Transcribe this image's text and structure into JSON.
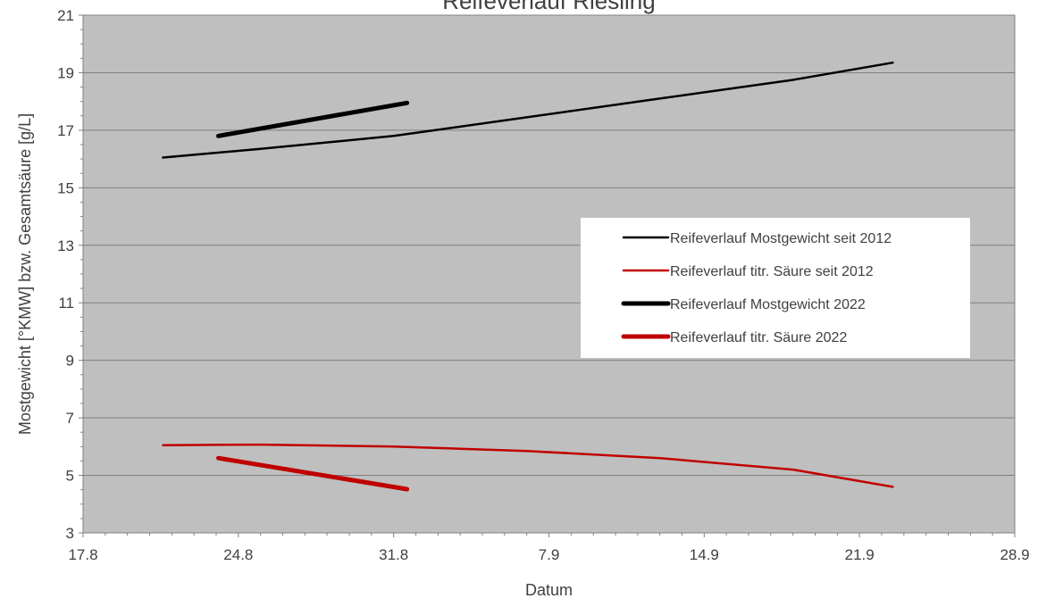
{
  "chart_data": {
    "type": "line",
    "title": "Reifeverlauf Riesling",
    "xlabel": "Datum",
    "ylabel": "Mostgewicht [°KMW] bzw. Gesamtsäure [g/L]",
    "x_ticks": [
      "17.8",
      "24.8",
      "31.8",
      "7.9",
      "14.9",
      "21.9",
      "28.9"
    ],
    "xlim": [
      0,
      42
    ],
    "ylim": [
      3,
      21
    ],
    "y_ticks": [
      3,
      5,
      7,
      9,
      11,
      13,
      15,
      17,
      19,
      21
    ],
    "grid": "horizontal",
    "legend_position": "right-center",
    "series": [
      {
        "name": "Reifeverlauf Mostgewicht seit 2012",
        "color": "#000000",
        "width": "thin",
        "points": [
          [
            3.6,
            16.05
          ],
          [
            8,
            16.35
          ],
          [
            14,
            16.8
          ],
          [
            20,
            17.45
          ],
          [
            26,
            18.1
          ],
          [
            32,
            18.75
          ],
          [
            36.5,
            19.35
          ]
        ]
      },
      {
        "name": "Reifeverlauf titr. Säure seit 2012",
        "color": "#c00000",
        "width": "thin",
        "points": [
          [
            3.6,
            6.05
          ],
          [
            8,
            6.07
          ],
          [
            14,
            6.0
          ],
          [
            20,
            5.85
          ],
          [
            26,
            5.6
          ],
          [
            32,
            5.2
          ],
          [
            36.5,
            4.6
          ]
        ]
      },
      {
        "name": "Reifeverlauf Mostgewicht 2022",
        "color": "#000000",
        "width": "thick",
        "points": [
          [
            6.1,
            16.8
          ],
          [
            14.6,
            17.95
          ]
        ]
      },
      {
        "name": "Reifeverlauf titr. Säure 2022",
        "color": "#c00000",
        "width": "thick",
        "points": [
          [
            6.1,
            5.6
          ],
          [
            14.6,
            4.52
          ]
        ]
      }
    ]
  }
}
